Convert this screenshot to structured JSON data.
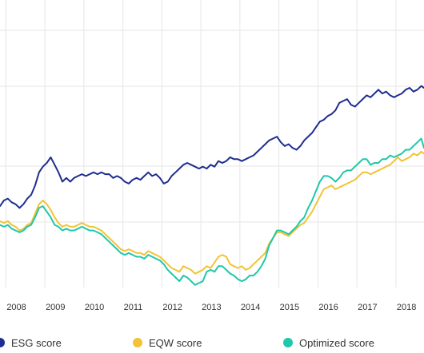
{
  "chart_data": {
    "type": "line",
    "x_ticks": [
      "2008",
      "2009",
      "2010",
      "2011",
      "2012",
      "2013",
      "2014",
      "2015",
      "2016",
      "2017",
      "2018"
    ],
    "x_range": [
      2007.85,
      2018.72
    ],
    "y_range": [
      0,
      100
    ],
    "grid": true,
    "legend_position": "bottom",
    "series": [
      {
        "name": "ESG score",
        "color": "#1f2d8f",
        "x": [
          2007.85,
          2007.95,
          2008.05,
          2008.15,
          2008.25,
          2008.35,
          2008.45,
          2008.55,
          2008.65,
          2008.75,
          2008.85,
          2008.95,
          2009.05,
          2009.15,
          2009.25,
          2009.35,
          2009.45,
          2009.55,
          2009.65,
          2009.75,
          2009.85,
          2009.95,
          2010.05,
          2010.15,
          2010.25,
          2010.35,
          2010.45,
          2010.55,
          2010.65,
          2010.75,
          2010.85,
          2010.95,
          2011.05,
          2011.15,
          2011.25,
          2011.35,
          2011.45,
          2011.55,
          2011.65,
          2011.75,
          2011.85,
          2011.95,
          2012.05,
          2012.15,
          2012.25,
          2012.35,
          2012.45,
          2012.55,
          2012.65,
          2012.75,
          2012.85,
          2012.95,
          2013.05,
          2013.15,
          2013.25,
          2013.35,
          2013.45,
          2013.55,
          2013.65,
          2013.75,
          2013.85,
          2013.95,
          2014.05,
          2014.15,
          2014.25,
          2014.35,
          2014.45,
          2014.55,
          2014.65,
          2014.75,
          2014.85,
          2014.95,
          2015.05,
          2015.15,
          2015.25,
          2015.35,
          2015.45,
          2015.55,
          2015.65,
          2015.75,
          2015.85,
          2015.95,
          2016.05,
          2016.15,
          2016.25,
          2016.35,
          2016.45,
          2016.55,
          2016.65,
          2016.75,
          2016.85,
          2016.95,
          2017.05,
          2017.15,
          2017.25,
          2017.35,
          2017.45,
          2017.55,
          2017.65,
          2017.75,
          2017.85,
          2017.95,
          2018.05,
          2018.15,
          2018.25,
          2018.35,
          2018.45,
          2018.55,
          2018.65,
          2018.72
        ],
        "values": [
          37,
          40,
          41,
          39,
          38,
          36,
          38,
          41,
          43,
          48,
          55,
          58,
          60,
          63,
          59,
          55,
          50,
          52,
          50,
          52,
          53,
          54,
          53,
          54,
          55,
          54,
          55,
          54,
          54,
          52,
          53,
          52,
          50,
          49,
          51,
          52,
          51,
          53,
          55,
          53,
          54,
          52,
          49,
          50,
          53,
          55,
          57,
          59,
          60,
          59,
          58,
          57,
          58,
          57,
          59,
          58,
          61,
          60,
          61,
          63,
          62,
          62,
          61,
          62,
          63,
          64,
          66,
          68,
          70,
          72,
          73,
          74,
          71,
          69,
          70,
          68,
          67,
          69,
          72,
          74,
          76,
          79,
          82,
          83,
          85,
          86,
          88,
          92,
          93,
          94,
          91,
          90,
          92,
          94,
          96,
          95,
          97,
          99,
          97,
          98,
          96,
          95,
          96,
          97,
          99,
          100,
          98,
          99,
          101,
          100
        ]
      },
      {
        "name": "EQW score",
        "color": "#f2c334",
        "x": [
          2007.85,
          2007.95,
          2008.05,
          2008.15,
          2008.25,
          2008.35,
          2008.45,
          2008.55,
          2008.65,
          2008.75,
          2008.85,
          2008.95,
          2009.05,
          2009.15,
          2009.25,
          2009.35,
          2009.45,
          2009.55,
          2009.65,
          2009.75,
          2009.85,
          2009.95,
          2010.05,
          2010.15,
          2010.25,
          2010.35,
          2010.45,
          2010.55,
          2010.65,
          2010.75,
          2010.85,
          2010.95,
          2011.05,
          2011.15,
          2011.25,
          2011.35,
          2011.45,
          2011.55,
          2011.65,
          2011.75,
          2011.85,
          2011.95,
          2012.05,
          2012.15,
          2012.25,
          2012.35,
          2012.45,
          2012.55,
          2012.65,
          2012.75,
          2012.85,
          2012.95,
          2013.05,
          2013.15,
          2013.25,
          2013.35,
          2013.45,
          2013.55,
          2013.65,
          2013.75,
          2013.85,
          2013.95,
          2014.05,
          2014.15,
          2014.25,
          2014.35,
          2014.45,
          2014.55,
          2014.65,
          2014.75,
          2014.85,
          2014.95,
          2015.05,
          2015.15,
          2015.25,
          2015.35,
          2015.45,
          2015.55,
          2015.65,
          2015.75,
          2015.85,
          2015.95,
          2016.05,
          2016.15,
          2016.25,
          2016.35,
          2016.45,
          2016.55,
          2016.65,
          2016.75,
          2016.85,
          2016.95,
          2017.05,
          2017.15,
          2017.25,
          2017.35,
          2017.45,
          2017.55,
          2017.65,
          2017.75,
          2017.85,
          2017.95,
          2018.05,
          2018.15,
          2018.25,
          2018.35,
          2018.45,
          2018.55,
          2018.65,
          2018.72
        ],
        "values": [
          29,
          28,
          29,
          27,
          26,
          24,
          25,
          27,
          28,
          33,
          38,
          40,
          38,
          35,
          31,
          28,
          26,
          27,
          26,
          26,
          27,
          28,
          27,
          26,
          26,
          25,
          24,
          22,
          20,
          18,
          16,
          14,
          13,
          14,
          13,
          12,
          12,
          11,
          13,
          12,
          11,
          10,
          8,
          6,
          4,
          3,
          2,
          5,
          4,
          3,
          1,
          2,
          3,
          5,
          4,
          7,
          10,
          11,
          10,
          6,
          5,
          4,
          5,
          3,
          4,
          6,
          8,
          10,
          12,
          17,
          20,
          23,
          23,
          22,
          21,
          23,
          25,
          27,
          28,
          31,
          34,
          38,
          42,
          46,
          47,
          48,
          46,
          47,
          48,
          49,
          50,
          51,
          53,
          55,
          55,
          54,
          55,
          56,
          57,
          58,
          59,
          61,
          63,
          61,
          62,
          63,
          65,
          64,
          66,
          65
        ]
      },
      {
        "name": "Optimized score",
        "color": "#1ec8aa",
        "x": [
          2007.85,
          2007.95,
          2008.05,
          2008.15,
          2008.25,
          2008.35,
          2008.45,
          2008.55,
          2008.65,
          2008.75,
          2008.85,
          2008.95,
          2009.05,
          2009.15,
          2009.25,
          2009.35,
          2009.45,
          2009.55,
          2009.65,
          2009.75,
          2009.85,
          2009.95,
          2010.05,
          2010.15,
          2010.25,
          2010.35,
          2010.45,
          2010.55,
          2010.65,
          2010.75,
          2010.85,
          2010.95,
          2011.05,
          2011.15,
          2011.25,
          2011.35,
          2011.45,
          2011.55,
          2011.65,
          2011.75,
          2011.85,
          2011.95,
          2012.05,
          2012.15,
          2012.25,
          2012.35,
          2012.45,
          2012.55,
          2012.65,
          2012.75,
          2012.85,
          2012.95,
          2013.05,
          2013.15,
          2013.25,
          2013.35,
          2013.45,
          2013.55,
          2013.65,
          2013.75,
          2013.85,
          2013.95,
          2014.05,
          2014.15,
          2014.25,
          2014.35,
          2014.45,
          2014.55,
          2014.65,
          2014.75,
          2014.85,
          2014.95,
          2015.05,
          2015.15,
          2015.25,
          2015.35,
          2015.45,
          2015.55,
          2015.65,
          2015.75,
          2015.85,
          2015.95,
          2016.05,
          2016.15,
          2016.25,
          2016.35,
          2016.45,
          2016.55,
          2016.65,
          2016.75,
          2016.85,
          2016.95,
          2017.05,
          2017.15,
          2017.25,
          2017.35,
          2017.45,
          2017.55,
          2017.65,
          2017.75,
          2017.85,
          2017.95,
          2018.05,
          2018.15,
          2018.25,
          2018.35,
          2018.45,
          2018.55,
          2018.65,
          2018.72
        ],
        "values": [
          27,
          26,
          27,
          25,
          24,
          23,
          24,
          26,
          27,
          31,
          36,
          37,
          34,
          31,
          27,
          26,
          24,
          25,
          24,
          24,
          25,
          26,
          25,
          24,
          24,
          23,
          22,
          20,
          18,
          16,
          14,
          12,
          11,
          12,
          11,
          10,
          10,
          9,
          11,
          10,
          9,
          8,
          6,
          3,
          1,
          -1,
          -3,
          0,
          -1,
          -3,
          -5,
          -4,
          -3,
          2,
          3,
          2,
          5,
          5,
          3,
          1,
          0,
          -2,
          -3,
          -2,
          0,
          0,
          2,
          5,
          9,
          16,
          20,
          24,
          24,
          23,
          22,
          24,
          26,
          29,
          31,
          36,
          40,
          45,
          50,
          53,
          53,
          52,
          50,
          52,
          55,
          56,
          56,
          58,
          60,
          62,
          62,
          59,
          60,
          60,
          62,
          62,
          64,
          63,
          64,
          65,
          67,
          67,
          69,
          71,
          73,
          68
        ]
      }
    ]
  }
}
